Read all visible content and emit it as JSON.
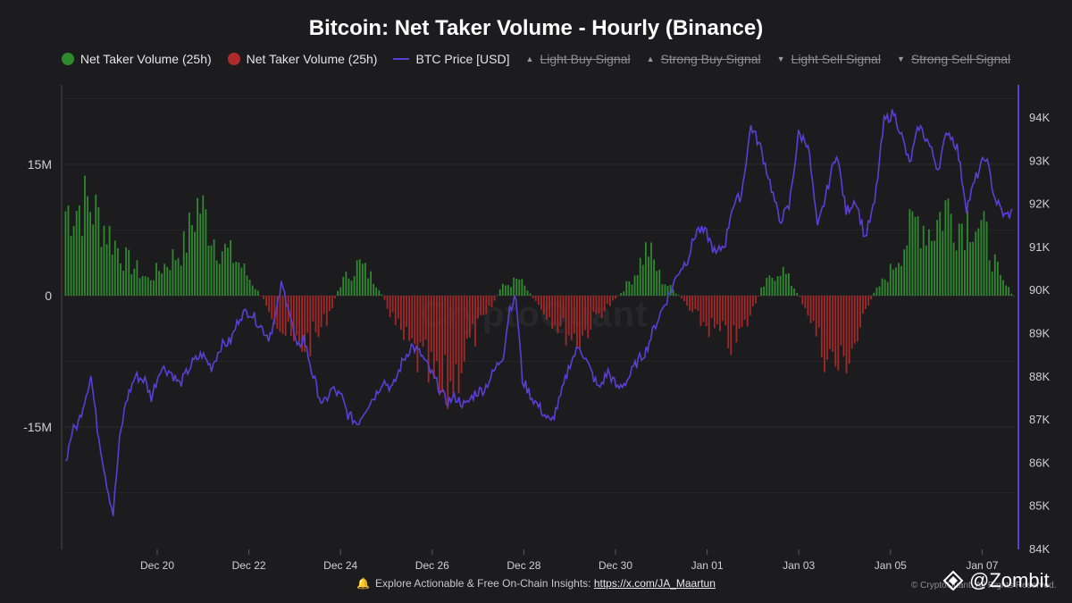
{
  "chart_data": {
    "type": "bar+line",
    "title": "Bitcoin: Net Taker Volume - Hourly (Binance)",
    "legend": [
      {
        "label": "Net Taker Volume (25h)",
        "marker": "green-dot",
        "color": "#2f8a2f",
        "visible": true
      },
      {
        "label": "Net Taker Volume (25h)",
        "marker": "red-dot",
        "color": "#b02a2a",
        "visible": true
      },
      {
        "label": "BTC Price [USD]",
        "marker": "line",
        "color": "#5a3fd6",
        "visible": true
      },
      {
        "label": "Light Buy Signal",
        "marker": "triangle-up",
        "visible": false
      },
      {
        "label": "Strong Buy Signal",
        "marker": "triangle-up",
        "visible": false
      },
      {
        "label": "Light Sell Signal",
        "marker": "triangle-down",
        "visible": false
      },
      {
        "label": "Strong Sell Signal",
        "marker": "triangle-down",
        "visible": false
      }
    ],
    "x_tick_labels": [
      "Dec 20",
      "Dec 22",
      "Dec 24",
      "Dec 26",
      "Dec 28",
      "Dec 30",
      "Jan 01",
      "Jan 03",
      "Jan 05",
      "Jan 07"
    ],
    "x_range_days": [
      -1.0,
      19.3
    ],
    "x_tick_days": [
      1,
      3,
      5,
      7,
      9,
      11,
      13,
      15,
      17,
      19
    ],
    "y_left": {
      "label": "",
      "ticks": [
        15000000,
        0,
        -15000000
      ],
      "tick_labels": [
        "15M",
        "0",
        "-15M"
      ],
      "range": [
        -29000000,
        24500000
      ]
    },
    "y_right": {
      "label": "",
      "ticks": [
        84000,
        85000,
        86000,
        87000,
        88000,
        89000,
        90000,
        91000,
        92000,
        93000,
        94000
      ],
      "tick_labels": [
        "84K",
        "85K",
        "86K",
        "87K",
        "88K",
        "89K",
        "90K",
        "91K",
        "92K",
        "93K",
        "94K"
      ],
      "range": [
        84000,
        94500
      ]
    },
    "net_taker_volume_anchors": [
      [
        -1.0,
        10500000
      ],
      [
        -0.5,
        11500000
      ],
      [
        -0.2,
        9000000
      ],
      [
        0.3,
        4500000
      ],
      [
        0.8,
        2000000
      ],
      [
        1.3,
        4500000
      ],
      [
        1.6,
        6000000
      ],
      [
        1.9,
        11500000
      ],
      [
        2.3,
        6500000
      ],
      [
        2.8,
        4000000
      ],
      [
        3.2,
        500000
      ],
      [
        3.4,
        -1200000
      ],
      [
        3.6,
        -3000000
      ],
      [
        4.0,
        -6500000
      ],
      [
        4.5,
        -5000000
      ],
      [
        4.8,
        -1500000
      ],
      [
        5.0,
        1500000
      ],
      [
        5.4,
        4000000
      ],
      [
        5.8,
        1500000
      ],
      [
        6.0,
        -1000000
      ],
      [
        6.3,
        -5000000
      ],
      [
        6.6,
        -7000000
      ],
      [
        6.9,
        -9500000
      ],
      [
        7.2,
        -13000000
      ],
      [
        7.5,
        -10000000
      ],
      [
        7.8,
        -6000000
      ],
      [
        8.2,
        -2500000
      ],
      [
        8.5,
        1000000
      ],
      [
        8.9,
        2000000
      ],
      [
        9.3,
        -1000000
      ],
      [
        9.8,
        -4000000
      ],
      [
        10.2,
        -5500000
      ],
      [
        10.6,
        -2500000
      ],
      [
        11.0,
        -500000
      ],
      [
        11.4,
        2500000
      ],
      [
        11.7,
        6000000
      ],
      [
        12.0,
        2000000
      ],
      [
        12.4,
        0
      ],
      [
        12.7,
        -2500000
      ],
      [
        13.2,
        -4500000
      ],
      [
        13.6,
        -6000000
      ],
      [
        13.9,
        -3000000
      ],
      [
        14.2,
        1000000
      ],
      [
        14.6,
        3500000
      ],
      [
        14.9,
        1000000
      ],
      [
        15.2,
        -2000000
      ],
      [
        15.5,
        -6500000
      ],
      [
        15.9,
        -9000000
      ],
      [
        16.3,
        -5000000
      ],
      [
        16.6,
        0
      ],
      [
        17.0,
        3000000
      ],
      [
        17.3,
        6500000
      ],
      [
        17.6,
        9500000
      ],
      [
        17.9,
        8000000
      ],
      [
        18.2,
        11000000
      ],
      [
        18.5,
        9000000
      ],
      [
        18.8,
        10000000
      ],
      [
        19.1,
        7000000
      ],
      [
        19.4,
        2000000
      ],
      [
        19.7,
        0
      ]
    ],
    "btc_price_anchors": [
      [
        -1.0,
        86000
      ],
      [
        -0.8,
        86700
      ],
      [
        -0.6,
        86900
      ],
      [
        -0.2,
        88000
      ],
      [
        0.0,
        86800
      ],
      [
        0.3,
        85500
      ],
      [
        0.5,
        84800
      ],
      [
        0.7,
        86500
      ],
      [
        0.9,
        87400
      ],
      [
        1.2,
        88000
      ],
      [
        1.5,
        87900
      ],
      [
        1.7,
        87500
      ],
      [
        2.0,
        88200
      ],
      [
        2.3,
        88100
      ],
      [
        2.6,
        87800
      ],
      [
        3.0,
        88300
      ],
      [
        3.3,
        88500
      ],
      [
        3.6,
        88200
      ],
      [
        3.9,
        88700
      ],
      [
        4.2,
        88800
      ],
      [
        4.5,
        89400
      ],
      [
        4.8,
        89500
      ],
      [
        5.1,
        89200
      ],
      [
        5.4,
        88900
      ],
      [
        5.6,
        89300
      ],
      [
        5.8,
        90100
      ],
      [
        6.0,
        89700
      ],
      [
        6.3,
        88600
      ],
      [
        6.5,
        88900
      ],
      [
        6.8,
        88000
      ],
      [
        7.1,
        87300
      ],
      [
        7.4,
        87700
      ],
      [
        7.7,
        87500
      ],
      [
        7.9,
        87100
      ],
      [
        8.2,
        86900
      ],
      [
        8.5,
        87300
      ],
      [
        8.8,
        87600
      ],
      [
        9.0,
        87900
      ],
      [
        9.3,
        87700
      ],
      [
        9.6,
        88300
      ],
      [
        9.9,
        88700
      ],
      [
        10.2,
        88500
      ],
      [
        10.5,
        88100
      ],
      [
        10.8,
        87700
      ],
      [
        11.0,
        87400
      ],
      [
        11.3,
        87500
      ],
      [
        11.6,
        87300
      ],
      [
        11.9,
        87600
      ],
      [
        12.2,
        87700
      ],
      [
        12.5,
        88100
      ],
      [
        12.8,
        88500
      ],
      [
        13.0,
        89600
      ],
      [
        13.2,
        89800
      ],
      [
        13.4,
        87900
      ],
      [
        13.7,
        87500
      ],
      [
        14.0,
        87200
      ],
      [
        14.3,
        86900
      ],
      [
        14.6,
        87500
      ],
      [
        14.9,
        88300
      ],
      [
        15.2,
        88700
      ],
      [
        15.5,
        88200
      ],
      [
        15.8,
        87700
      ],
      [
        16.1,
        88100
      ],
      [
        16.4,
        87700
      ],
      [
        16.7,
        87900
      ],
      [
        17.0,
        88300
      ],
      [
        17.3,
        88600
      ],
      [
        17.6,
        89200
      ],
      [
        17.9,
        89700
      ],
      [
        18.1,
        90000
      ],
      [
        18.3,
        90400
      ],
      [
        18.6,
        90700
      ],
      [
        18.9,
        91400
      ],
      [
        19.2,
        91300
      ],
      [
        19.5,
        90800
      ],
      [
        19.8,
        91100
      ],
      [
        20.0,
        91900
      ],
      [
        20.3,
        92200
      ],
      [
        20.6,
        93800
      ],
      [
        20.9,
        93300
      ],
      [
        21.2,
        92500
      ],
      [
        21.5,
        91600
      ],
      [
        21.8,
        91900
      ],
      [
        22.1,
        93600
      ],
      [
        22.4,
        93400
      ],
      [
        22.7,
        91400
      ],
      [
        23.0,
        92300
      ],
      [
        23.3,
        93200
      ],
      [
        23.6,
        91800
      ],
      [
        23.9,
        92100
      ],
      [
        24.2,
        91200
      ],
      [
        24.5,
        92000
      ],
      [
        24.8,
        93900
      ],
      [
        25.1,
        94100
      ],
      [
        25.3,
        93700
      ],
      [
        25.6,
        92900
      ],
      [
        25.9,
        93800
      ],
      [
        26.2,
        93400
      ],
      [
        26.5,
        92800
      ],
      [
        26.8,
        93700
      ],
      [
        27.1,
        93300
      ],
      [
        27.4,
        91900
      ],
      [
        27.7,
        92600
      ],
      [
        28.0,
        93100
      ],
      [
        28.3,
        92100
      ],
      [
        28.6,
        91700
      ],
      [
        28.9,
        91800
      ]
    ]
  },
  "footer": {
    "text": "Explore Actionable & Free On-Chain Insights: ",
    "link": "https://x.com/JA_Maartun",
    "copyright": "© CryptoQuant. All Rights Reserved.",
    "brand": "@Zombit",
    "watermark": "CryptoQuant"
  }
}
